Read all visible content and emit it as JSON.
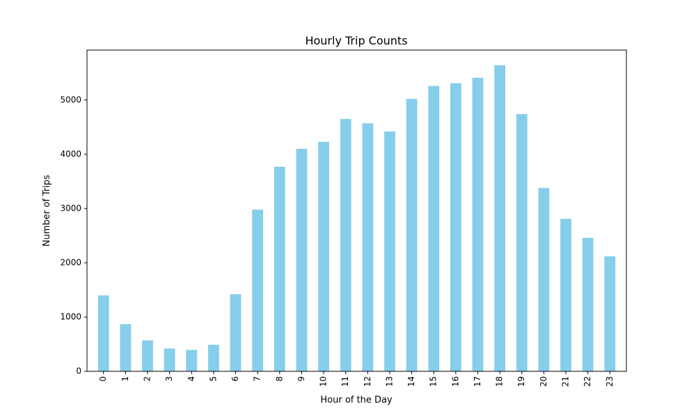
{
  "chart_data": {
    "type": "bar",
    "title": "Hourly Trip Counts",
    "xlabel": "Hour of the Day",
    "ylabel": "Number of Trips",
    "categories": [
      "0",
      "1",
      "2",
      "3",
      "4",
      "5",
      "6",
      "7",
      "8",
      "9",
      "10",
      "11",
      "12",
      "13",
      "14",
      "15",
      "16",
      "17",
      "18",
      "19",
      "20",
      "21",
      "22",
      "23"
    ],
    "values": [
      1400,
      870,
      570,
      420,
      395,
      490,
      1420,
      2980,
      3770,
      4100,
      4230,
      4650,
      4570,
      4420,
      5020,
      5260,
      5310,
      5410,
      5640,
      4740,
      3380,
      2810,
      2460,
      2120
    ],
    "ylim": [
      0,
      5920
    ],
    "yticks": [
      0,
      1000,
      2000,
      3000,
      4000,
      5000
    ],
    "grid": false,
    "legend": "none",
    "bar_color": "#87ceeb",
    "xtick_rotation": "vertical"
  }
}
